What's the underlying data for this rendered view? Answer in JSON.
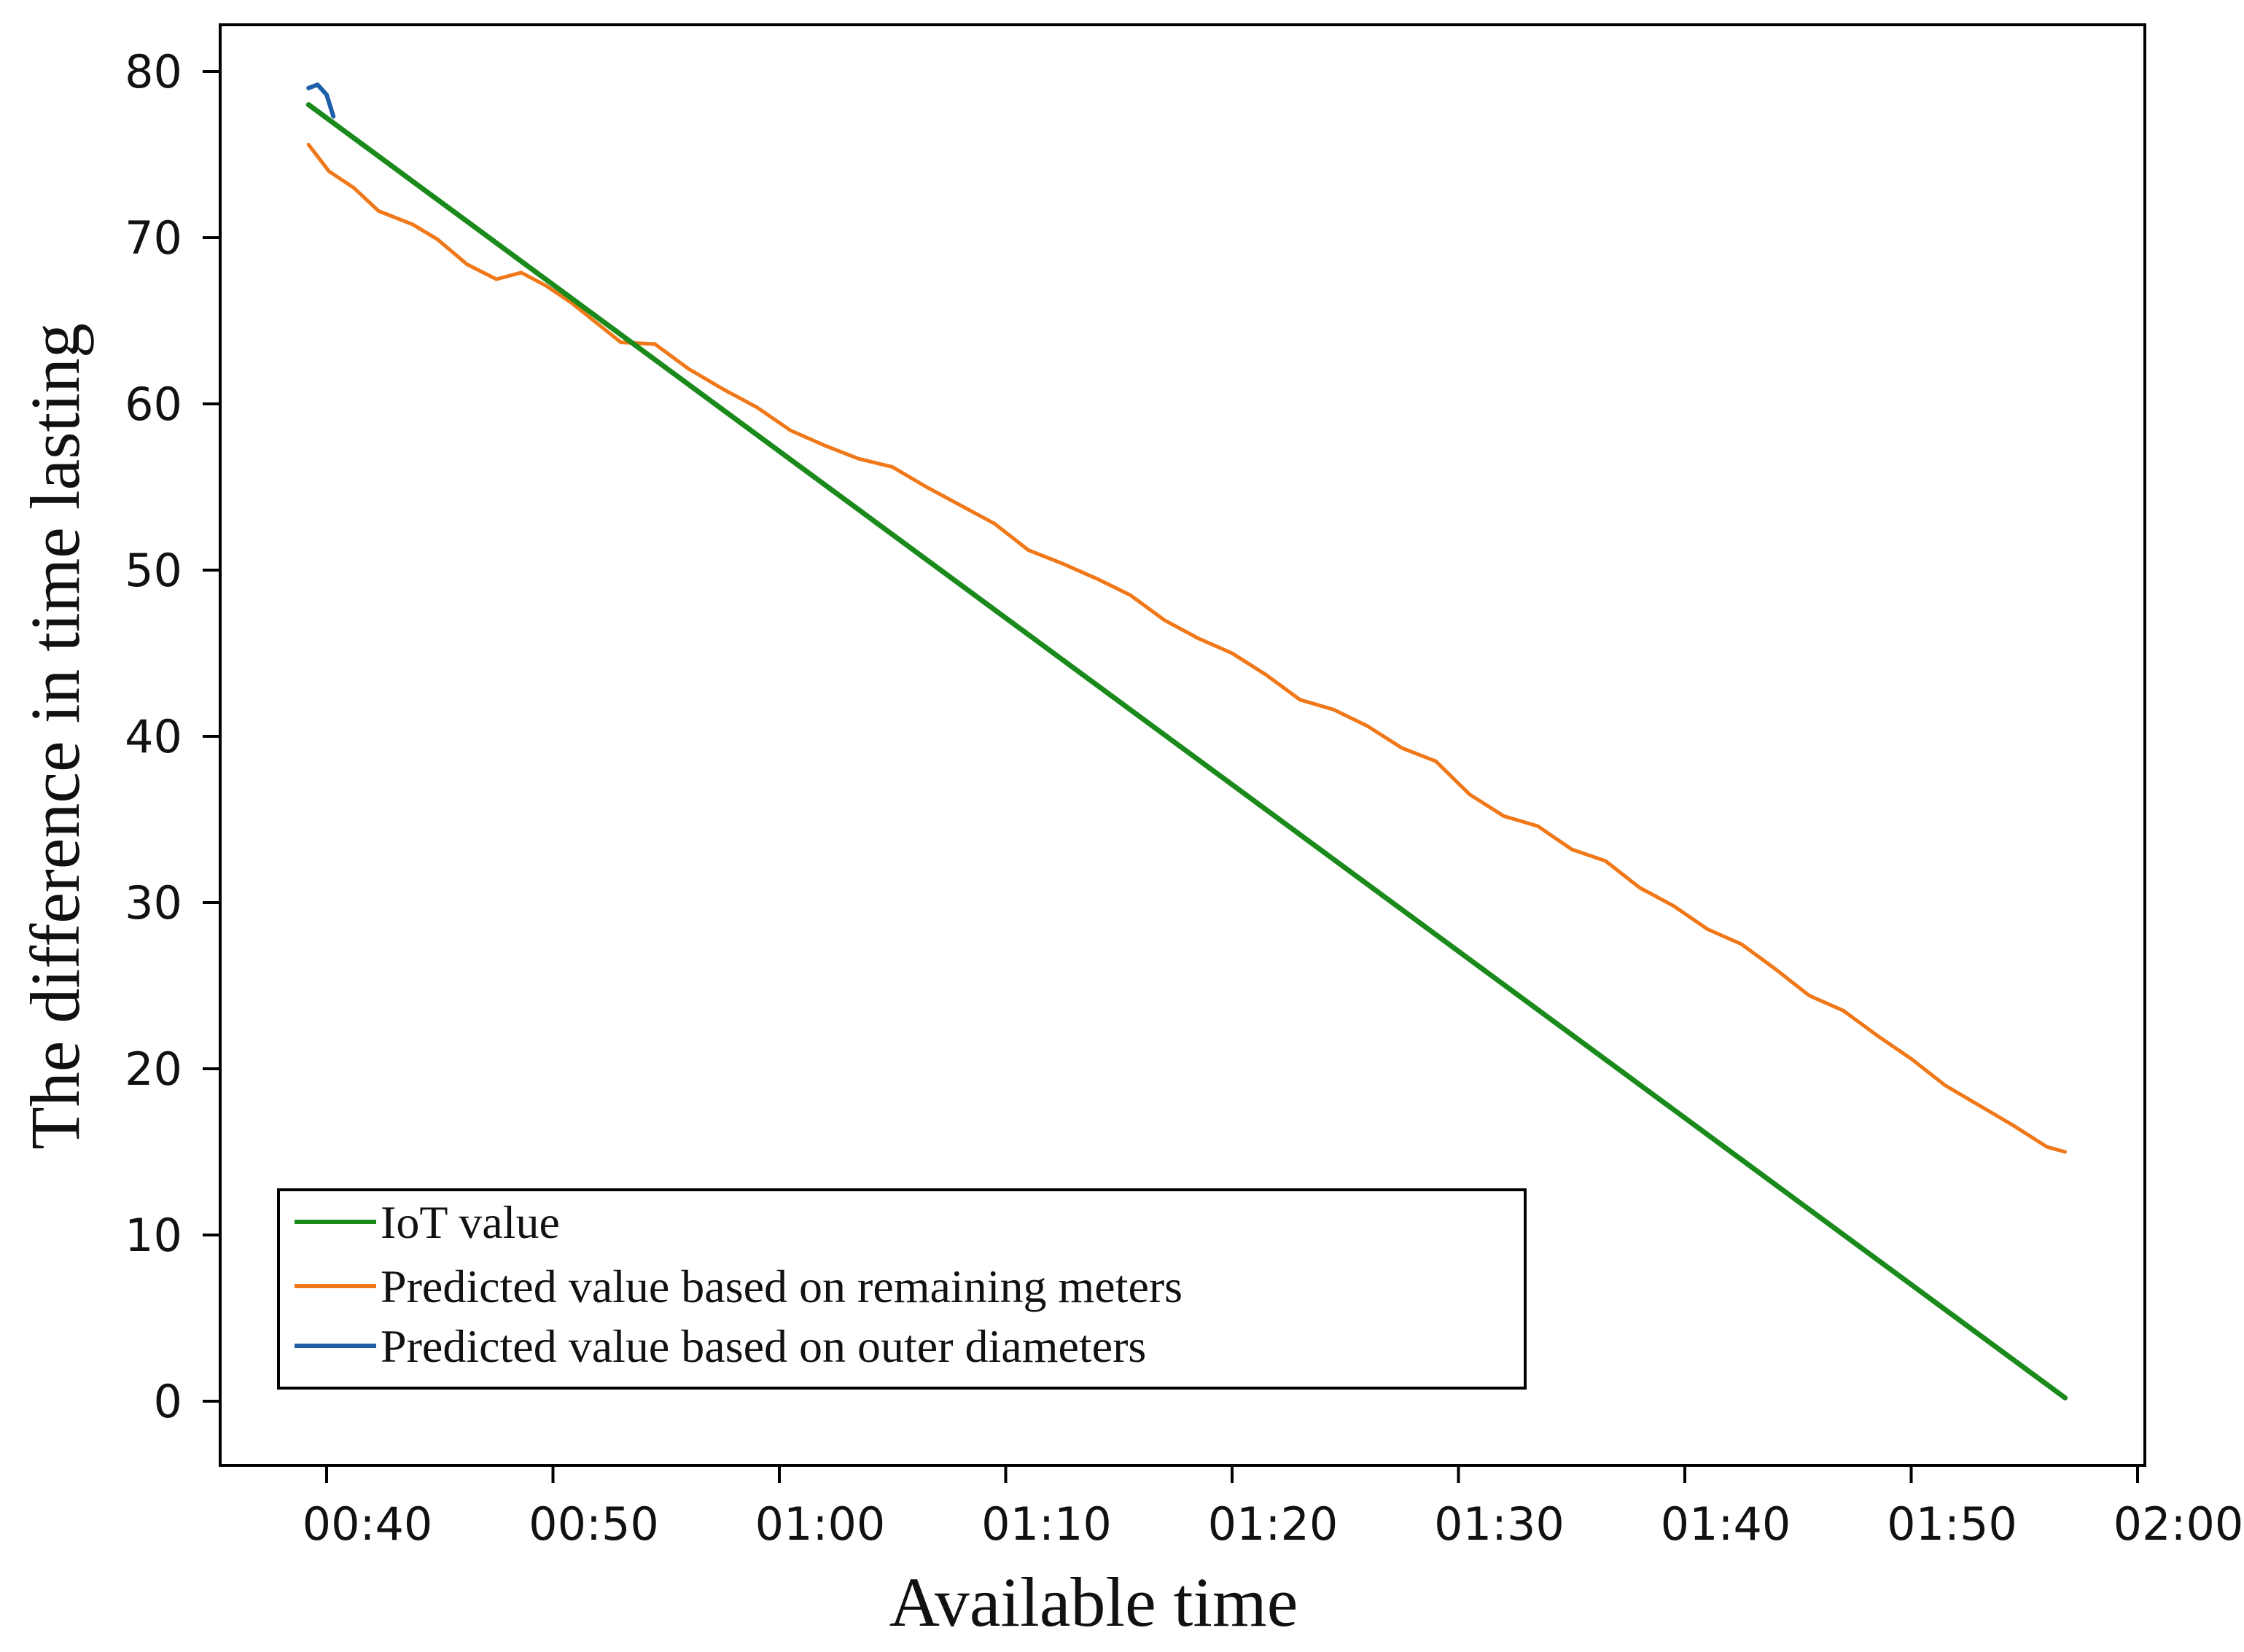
{
  "chart_data": {
    "type": "line",
    "title": "",
    "xlabel": "Available time",
    "ylabel": "The difference in time lasting",
    "ylim": [
      0,
      80
    ],
    "xlim_minutes": [
      35.2,
      121.0
    ],
    "y_ticks": [
      0,
      10,
      20,
      30,
      40,
      50,
      60,
      70,
      80
    ],
    "x_ticks": [
      {
        "minute": 40,
        "label": "00:40"
      },
      {
        "minute": 50,
        "label": "00:50"
      },
      {
        "minute": 60,
        "label": "01:00"
      },
      {
        "minute": 70,
        "label": "01:10"
      },
      {
        "minute": 80,
        "label": "01:20"
      },
      {
        "minute": 90,
        "label": "01:30"
      },
      {
        "minute": 100,
        "label": "01:40"
      },
      {
        "minute": 110,
        "label": "01:50"
      },
      {
        "minute": 120,
        "label": "02:00"
      }
    ],
    "legend_position": "bottom-left",
    "series": [
      {
        "name": "IoT value",
        "color": "#1a8a1a",
        "minutes": [
          39.2,
          116.8
        ],
        "values": [
          78.0,
          0.2
        ]
      },
      {
        "name": "Predicted value based on remaining meters",
        "color": "#f07818",
        "minutes": [
          39.2,
          40.1,
          41.2,
          42.3,
          43.8,
          44.9,
          46.2,
          47.5,
          48.6,
          49.7,
          50.8,
          51.9,
          53.0,
          54.5,
          56.0,
          57.5,
          59.0,
          60.5,
          62.0,
          63.5,
          65.0,
          66.5,
          68.0,
          69.5,
          71.0,
          72.5,
          74.0,
          75.5,
          77.0,
          78.5,
          80.0,
          81.5,
          83.0,
          84.5,
          86.0,
          87.5,
          89.0,
          90.5,
          92.0,
          93.5,
          95.0,
          96.5,
          98.0,
          99.5,
          101.0,
          102.5,
          104.0,
          105.5,
          107.0,
          108.5,
          110.0,
          111.5,
          113.0,
          114.5,
          116.0,
          116.8
        ],
        "values": [
          75.6,
          74.0,
          73.0,
          71.6,
          70.8,
          69.9,
          68.4,
          67.5,
          67.9,
          67.1,
          66.1,
          64.9,
          63.7,
          63.6,
          62.1,
          60.9,
          59.8,
          58.4,
          57.5,
          56.7,
          56.2,
          55.0,
          53.9,
          52.8,
          51.2,
          50.4,
          49.5,
          48.5,
          47.0,
          45.9,
          45.0,
          43.7,
          42.2,
          41.6,
          40.6,
          39.3,
          38.5,
          36.5,
          35.2,
          34.6,
          33.2,
          32.5,
          30.9,
          29.8,
          28.4,
          27.5,
          26.0,
          24.4,
          23.5,
          22.0,
          20.6,
          19.0,
          17.8,
          16.6,
          15.3,
          15.0
        ]
      },
      {
        "name": "Predicted value based on outer diameters",
        "color": "#1f5fa8",
        "minutes": [
          39.2,
          39.6,
          40.0,
          40.3
        ],
        "values": [
          79.0,
          79.2,
          78.6,
          77.3
        ]
      }
    ]
  }
}
